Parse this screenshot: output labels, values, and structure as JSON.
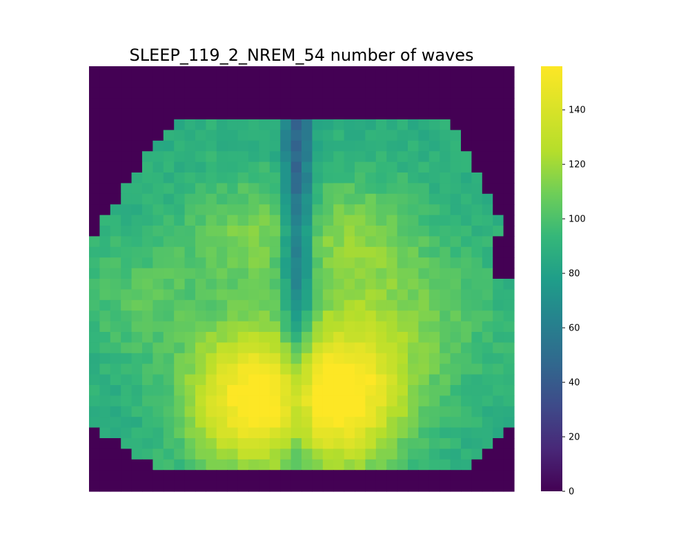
{
  "chart_data": {
    "type": "heatmap",
    "title": "SLEEP_119_2_NREM_54 number of waves",
    "xlabel": "",
    "ylabel": "",
    "colormap": "viridis",
    "vmin": 0,
    "vmax": 156,
    "colorbar_ticks": [
      0,
      20,
      40,
      60,
      80,
      100,
      120,
      140
    ],
    "colorbar_tick_labels": [
      "0",
      "20",
      "40",
      "60",
      "80",
      "100",
      "120",
      "140"
    ],
    "grid_size": [
      40,
      40
    ],
    "axes_visible": false,
    "background_value": 0,
    "hotspots": [
      {
        "region": "left-posterior",
        "value": 156
      },
      {
        "region": "right-posterior",
        "value": 156
      },
      {
        "region": "midline",
        "value": 65
      },
      {
        "region": "left-anterior",
        "value": 110
      },
      {
        "region": "right-anterior",
        "value": 110
      }
    ]
  },
  "colors": {
    "viridis_low": "#440154",
    "viridis_mid": "#21918c",
    "viridis_high": "#fde725"
  }
}
